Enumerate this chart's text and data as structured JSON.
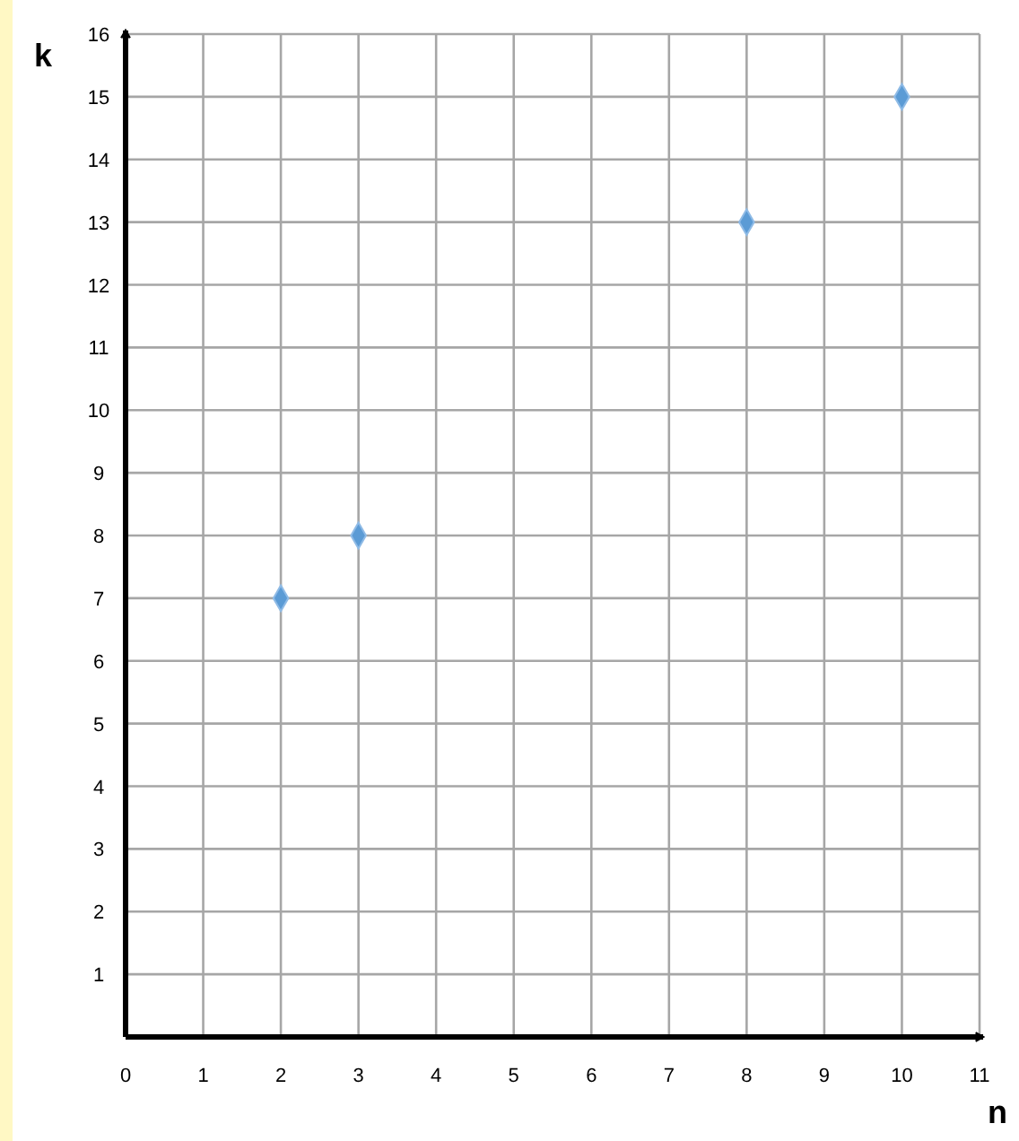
{
  "chart_data": {
    "type": "scatter",
    "xlabel": "n",
    "ylabel": "k",
    "x": [
      2,
      3,
      8,
      10
    ],
    "series": [
      {
        "color": "#5b9bd5",
        "values": [
          7,
          8,
          13,
          15
        ]
      }
    ],
    "xlim": [
      0,
      11
    ],
    "xticks": [
      0,
      1,
      2,
      3,
      4,
      5,
      6,
      7,
      8,
      9,
      10,
      11
    ],
    "ylim": [
      0,
      16
    ],
    "yticks": [
      {
        "value": 0,
        "label": null
      },
      1,
      2,
      3,
      4,
      5,
      6,
      7,
      8,
      9,
      10,
      11,
      12,
      13,
      14,
      15,
      16
    ],
    "grid": true,
    "marker": "diamond"
  }
}
